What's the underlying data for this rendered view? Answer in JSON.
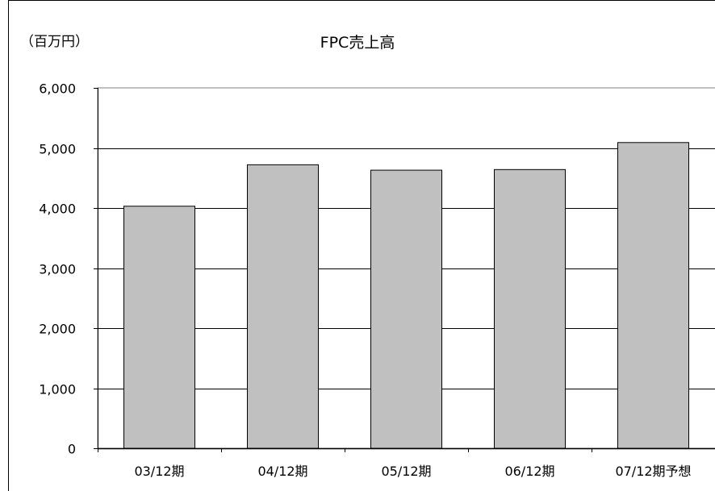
{
  "chart_data": {
    "type": "bar",
    "title": "FPC売上高",
    "unit_label": "（百万円）",
    "xlabel": "",
    "ylabel": "",
    "categories": [
      "03/12期",
      "04/12期",
      "05/12期",
      "06/12期",
      "07/12期予想"
    ],
    "values": [
      4030,
      4720,
      4630,
      4640,
      5090
    ],
    "ylim": [
      0,
      6000
    ],
    "yticks": [
      0,
      1000,
      2000,
      3000,
      4000,
      5000,
      6000
    ],
    "ytick_labels": [
      "0",
      "1,000",
      "2,000",
      "3,000",
      "4,000",
      "5,000",
      "6,000"
    ],
    "grid": true,
    "legend": "none",
    "bar_color": "#c0c0c0",
    "bar_edge_color": "#000000"
  }
}
